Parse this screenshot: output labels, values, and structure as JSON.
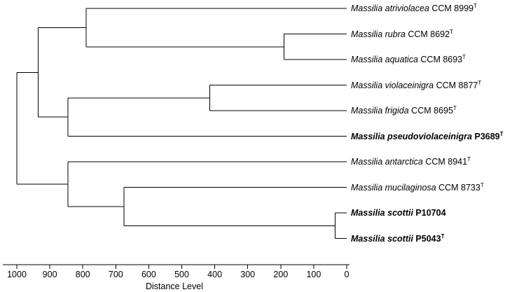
{
  "axis": {
    "title": "Distance Level",
    "range": [
      1000,
      0
    ],
    "ticks": [
      "1000",
      "900",
      "800",
      "700",
      "600",
      "500",
      "400",
      "300",
      "200",
      "100",
      "0"
    ]
  },
  "leaves": [
    {
      "genus": "Massilia",
      "species": "atriviolacea",
      "strain": "CCM 8999",
      "type_strain": "T",
      "bold": false
    },
    {
      "genus": "Massilia",
      "species": "rubra",
      "strain": "CCM 8692",
      "type_strain": "T",
      "bold": false
    },
    {
      "genus": "Massilia",
      "species": "aquatica",
      "strain": "CCM 8693",
      "type_strain": "T",
      "bold": false
    },
    {
      "genus": "Massilia",
      "species": "violaceinigra",
      "strain": "CCM 8877",
      "type_strain": "T",
      "bold": false
    },
    {
      "genus": "Massilia",
      "species": "frigida",
      "strain": "CCM 8695",
      "type_strain": "T",
      "bold": false
    },
    {
      "genus": "Massilia",
      "species": "pseudoviolaceinigra",
      "strain": "P3689",
      "type_strain": "T",
      "bold": true
    },
    {
      "genus": "Massilia",
      "species": "antarctica",
      "strain": "CCM 8941",
      "type_strain": "T",
      "bold": false
    },
    {
      "genus": "Massilia",
      "species": "mucilaginosa",
      "strain": "CCM 8733",
      "type_strain": "T",
      "bold": false
    },
    {
      "genus": "Massilia",
      "species": "scottii",
      "strain": "P10704",
      "type_strain": "",
      "bold": true
    },
    {
      "genus": "Massilia",
      "species": "scottii",
      "strain": "P5043",
      "type_strain": "T",
      "bold": true
    }
  ],
  "tree": {
    "distance": 1000,
    "children": [
      {
        "distance": 935,
        "children": [
          {
            "distance": 790,
            "children": [
              {
                "leaf": 0
              },
              {
                "distance": 190,
                "children": [
                  {
                    "leaf": 1
                  },
                  {
                    "leaf": 2
                  }
                ]
              }
            ]
          },
          {
            "distance": 845,
            "children": [
              {
                "distance": 415,
                "children": [
                  {
                    "leaf": 3
                  },
                  {
                    "leaf": 4
                  }
                ]
              },
              {
                "leaf": 5
              }
            ]
          }
        ]
      },
      {
        "distance": 845,
        "children": [
          {
            "leaf": 6
          },
          {
            "distance": 675,
            "children": [
              {
                "leaf": 7
              },
              {
                "distance": 35,
                "children": [
                  {
                    "leaf": 8
                  },
                  {
                    "leaf": 9
                  }
                ]
              }
            ]
          }
        ]
      }
    ]
  }
}
